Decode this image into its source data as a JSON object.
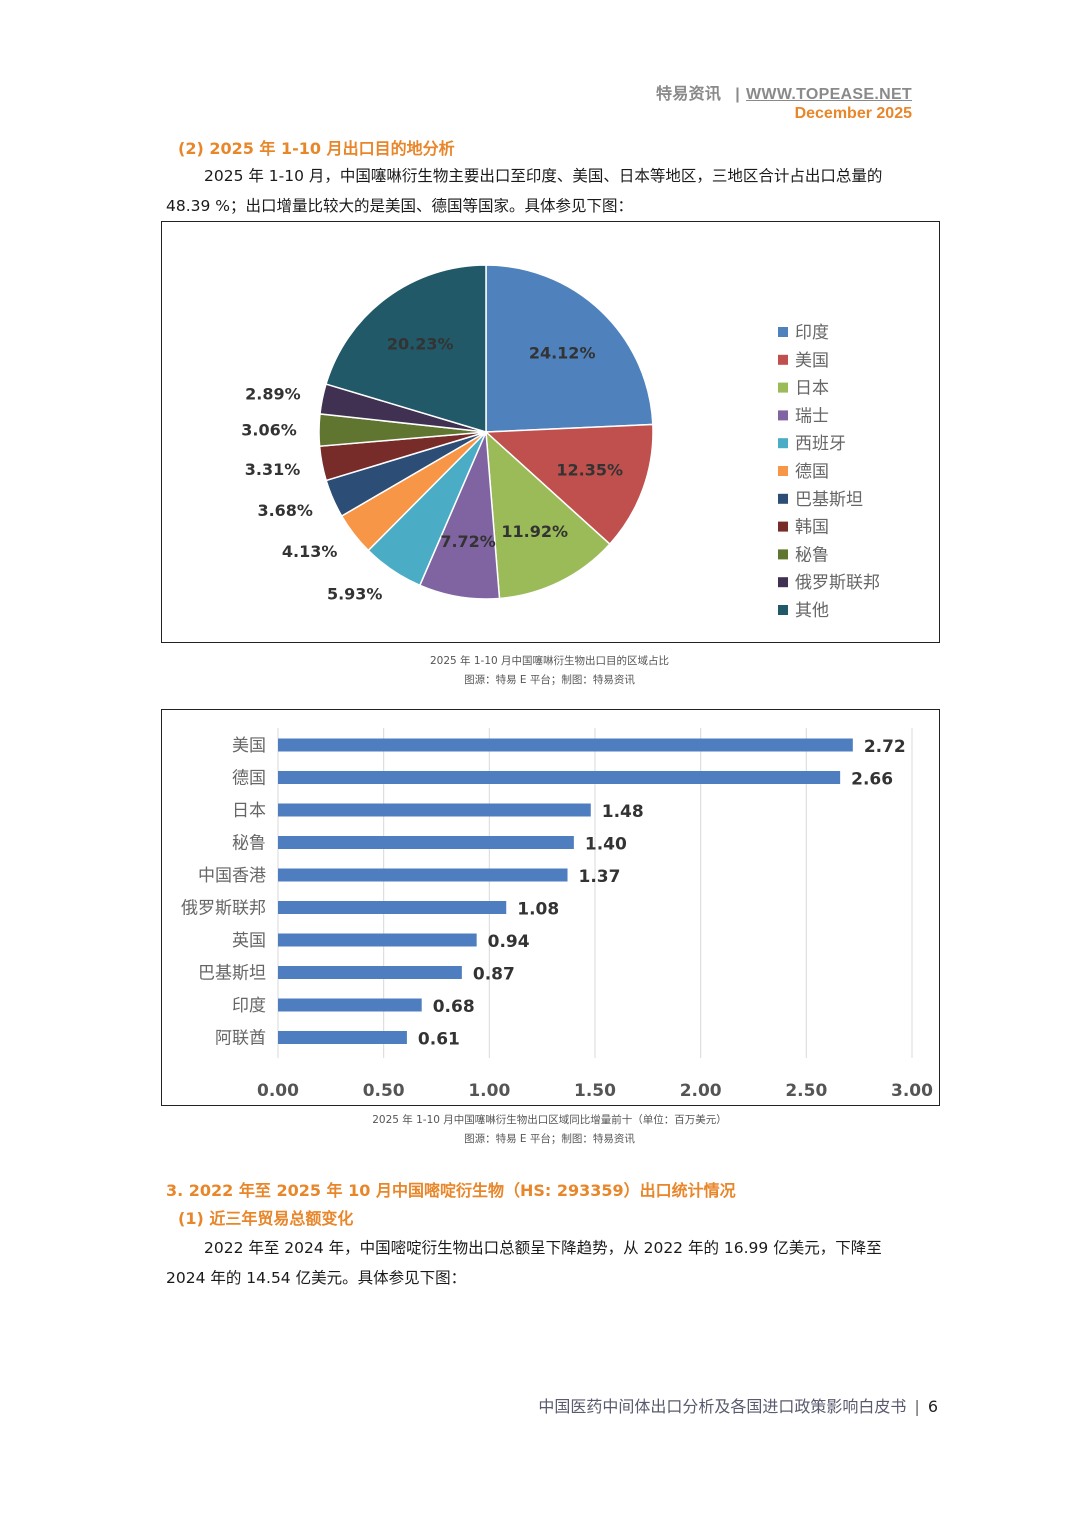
{
  "header": {
    "brand": "特易资讯",
    "site": "WWW.TOPEASE.NET",
    "date": "December 2025"
  },
  "section2": {
    "title": "(2) 2025 年 1-10 月出口目的地分析",
    "paragraph": "2025 年 1-10 月，中国噻啉衍生物主要出口至印度、美国、日本等地区，三地区合计占出口总量的 48.39 %；出口增量比较大的是美国、德国等国家。具体参见下图："
  },
  "pie_caption": {
    "line1": "2025 年 1-10 月中国噻啉衍生物出口目的区域占比",
    "line2": "图源：特易 E 平台；制图：特易资讯"
  },
  "bar_caption": {
    "line1": "2025 年 1-10 月中国噻啉衍生物出口区域同比增量前十（单位：百万美元）",
    "line2": "图源：特易 E 平台；制图：特易资讯"
  },
  "section3": {
    "title": "3. 2022 年至 2025 年 10 月中国嘧啶衍生物（HS: 293359）出口统计情况",
    "subtitle": "(1) 近三年贸易总额变化",
    "paragraph": "2022 年至 2024 年，中国嘧啶衍生物出口总额呈下降趋势，从 2022 年的 16.99 亿美元，下降至2024 年的 14.54 亿美元。具体参见下图："
  },
  "footer": {
    "title": "中国医药中间体出口分析及各国进口政策影响白皮书",
    "page": "6"
  },
  "chart_data": [
    {
      "type": "pie",
      "categories": [
        "印度",
        "美国",
        "日本",
        "瑞士",
        "西班牙",
        "德国",
        "巴基斯坦",
        "韩国",
        "秘鲁",
        "俄罗斯联邦",
        "其他"
      ],
      "values": [
        24.12,
        12.35,
        11.92,
        7.72,
        5.93,
        4.13,
        3.68,
        3.31,
        3.06,
        2.89,
        20.23
      ],
      "labels": [
        "24.12%",
        "12.35%",
        "11.92%",
        "7.72%",
        "5.93%",
        "4.13%",
        "3.68%",
        "3.31%",
        "3.06%",
        "2.89%",
        "20.23%"
      ],
      "colors": [
        "#4f81bd",
        "#c0504d",
        "#9bbb59",
        "#8064a2",
        "#4bacc6",
        "#f79646",
        "#2c4d75",
        "#772c2a",
        "#5f7530",
        "#403152",
        "#215968"
      ],
      "legend_position": "right"
    },
    {
      "type": "bar",
      "orientation": "horizontal",
      "categories": [
        "美国",
        "德国",
        "日本",
        "秘鲁",
        "中国香港",
        "俄罗斯联邦",
        "英国",
        "巴基斯坦",
        "印度",
        "阿联酋"
      ],
      "values": [
        2.72,
        2.66,
        1.48,
        1.4,
        1.37,
        1.08,
        0.94,
        0.87,
        0.68,
        0.61
      ],
      "value_labels": [
        "2.72",
        "2.66",
        "1.48",
        "1.40",
        "1.37",
        "1.08",
        "0.94",
        "0.87",
        "0.68",
        "0.61"
      ],
      "xticks": [
        "0.00",
        "0.50",
        "1.00",
        "1.50",
        "2.00",
        "2.50",
        "3.00"
      ],
      "xlim": [
        0,
        3
      ],
      "bar_color": "#4f7ec0",
      "grid": true
    }
  ]
}
